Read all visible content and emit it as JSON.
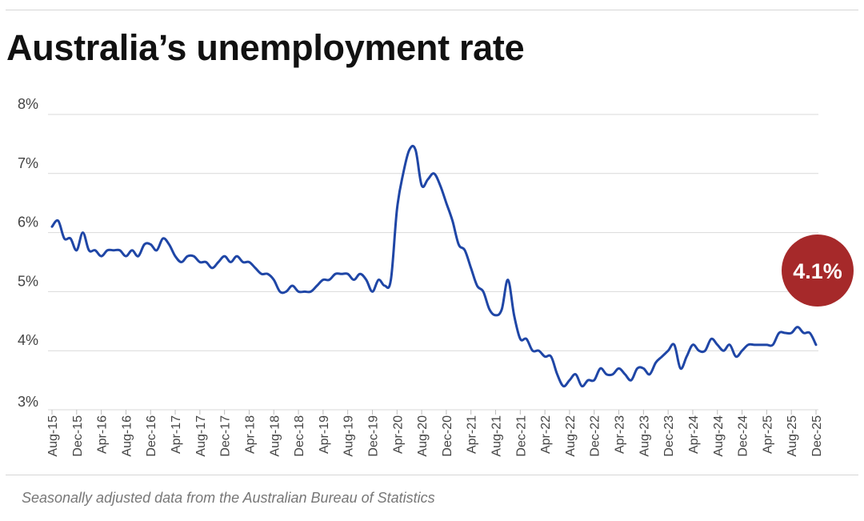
{
  "title": "Australia’s unemployment rate",
  "source": "Seasonally adjusted data from the Australian Bureau of Statistics",
  "colors": {
    "line": "#1f46a6",
    "badge": "#a6292a",
    "grid": "#d9d9d9",
    "text": "#444444"
  },
  "chart_data": {
    "type": "line",
    "title": "Australia’s unemployment rate",
    "xlabel": "",
    "ylabel": "",
    "ylim": [
      3,
      8
    ],
    "yticks": [
      3,
      4,
      5,
      6,
      7,
      8
    ],
    "ytick_labels": [
      "3%",
      "4%",
      "5%",
      "6%",
      "7%",
      "8%"
    ],
    "xticks": [
      "Aug-15",
      "Dec-15",
      "Apr-16",
      "Aug-16",
      "Dec-16",
      "Apr-17",
      "Aug-17",
      "Dec-17",
      "Apr-18",
      "Aug-18",
      "Dec-18",
      "Apr-19",
      "Aug-19",
      "Dec-19",
      "Apr-20",
      "Aug-20",
      "Dec-20",
      "Apr-21",
      "Aug-21",
      "Dec-21",
      "Apr-22",
      "Aug-22",
      "Dec-22",
      "Apr-23",
      "Aug-23",
      "Dec-23",
      "Apr-24",
      "Aug-24",
      "Dec-24",
      "Apr-25",
      "Aug-25",
      "Dec-25"
    ],
    "x_start": "Aug-15",
    "x_end": "Dec-25",
    "grid": true,
    "series": [
      {
        "values": [
          6.1,
          6.2,
          5.9,
          5.9,
          5.7,
          6.0,
          5.7,
          5.7,
          5.6,
          5.7,
          5.7,
          5.7,
          5.6,
          5.7,
          5.6,
          5.8,
          5.8,
          5.7,
          5.9,
          5.8,
          5.6,
          5.5,
          5.6,
          5.6,
          5.5,
          5.5,
          5.4,
          5.5,
          5.6,
          5.5,
          5.6,
          5.5,
          5.5,
          5.4,
          5.3,
          5.3,
          5.2,
          5.0,
          5.0,
          5.1,
          5.0,
          5.0,
          5.0,
          5.1,
          5.2,
          5.2,
          5.3,
          5.3,
          5.3,
          5.2,
          5.3,
          5.2,
          5.0,
          5.2,
          5.1,
          5.2,
          6.4,
          7.0,
          7.4,
          7.4,
          6.8,
          6.9,
          7.0,
          6.8,
          6.5,
          6.2,
          5.8,
          5.7,
          5.4,
          5.1,
          5.0,
          4.7,
          4.6,
          4.7,
          5.2,
          4.6,
          4.2,
          4.2,
          4.0,
          4.0,
          3.9,
          3.9,
          3.6,
          3.4,
          3.5,
          3.6,
          3.4,
          3.5,
          3.5,
          3.7,
          3.6,
          3.6,
          3.7,
          3.6,
          3.5,
          3.7,
          3.7,
          3.6,
          3.8,
          3.9,
          4.0,
          4.1,
          3.7,
          3.9,
          4.1,
          4.0,
          4.0,
          4.2,
          4.1,
          4.0,
          4.1,
          3.9,
          4.0,
          4.1,
          4.1,
          4.1,
          4.1,
          4.1,
          4.3,
          4.3,
          4.3,
          4.4,
          4.3,
          4.3,
          4.1
        ],
        "last_value_label": "4.1%"
      }
    ]
  }
}
